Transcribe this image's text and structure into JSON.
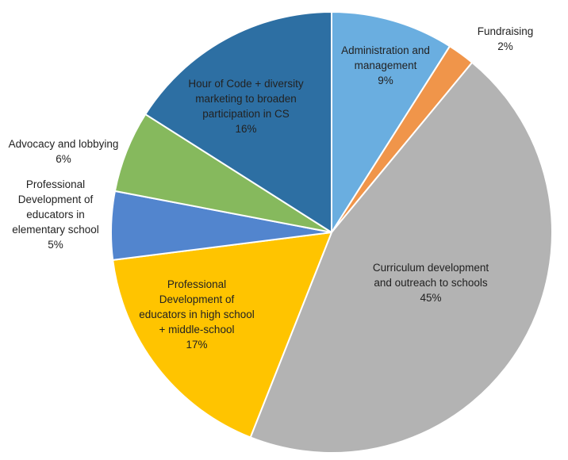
{
  "chart_data": {
    "type": "pie",
    "title": "",
    "slices": [
      {
        "name": "Administration and management",
        "label_lines": [
          "Administration and",
          "management"
        ],
        "value": 9,
        "pct_label": "9%",
        "color": "#6aaee0"
      },
      {
        "name": "Fundraising",
        "label_lines": [
          "Fundraising"
        ],
        "value": 2,
        "pct_label": "2%",
        "color": "#f0954a"
      },
      {
        "name": "Curriculum development and outreach to schools",
        "label_lines": [
          "Curriculum development",
          "and outreach to schools"
        ],
        "value": 45,
        "pct_label": "45%",
        "color": "#b3b3b3"
      },
      {
        "name": "Professional Development of educators in high school + middle-school",
        "label_lines": [
          "Professional",
          "Development of",
          "educators in high school",
          "+ middle-school"
        ],
        "value": 17,
        "pct_label": "17%",
        "color": "#ffc400"
      },
      {
        "name": "Professional Development of educators in elementary school",
        "label_lines": [
          "Professional",
          "Development of",
          "educators in",
          "elementary school"
        ],
        "value": 5,
        "pct_label": "5%",
        "color": "#5285ce"
      },
      {
        "name": "Advocacy and lobbying",
        "label_lines": [
          "Advocacy and lobbying"
        ],
        "value": 6,
        "pct_label": "6%",
        "color": "#86b95d"
      },
      {
        "name": "Hour of Code + diversity marketing to broaden participation in CS",
        "label_lines": [
          "Hour of Code + diversity",
          "marketing to broaden",
          "participation in CS"
        ],
        "value": 16,
        "pct_label": "16%",
        "color": "#2d6fa3"
      }
    ]
  }
}
